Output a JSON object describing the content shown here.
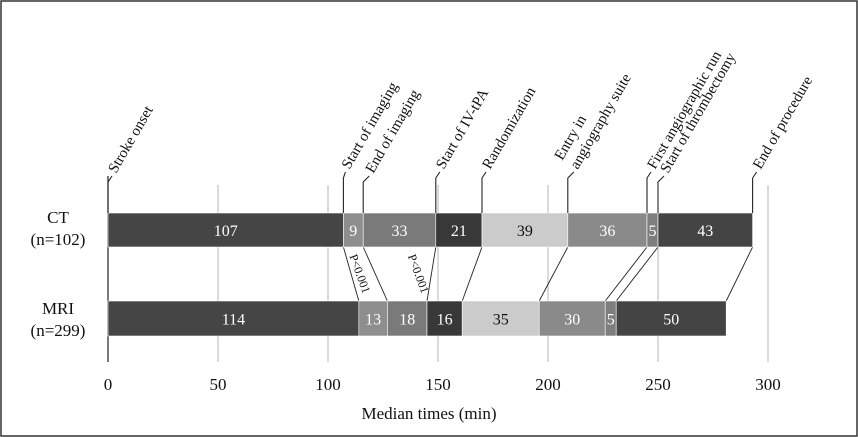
{
  "chart_data": {
    "type": "bar",
    "orientation": "horizontal",
    "stacked": true,
    "xlabel": "Median times (min)",
    "xlim": [
      0,
      300
    ],
    "xticks": [
      "0",
      "50",
      "100",
      "150",
      "200",
      "250",
      "300"
    ],
    "grid": true,
    "milestones": [
      "Stroke onset",
      "Start of imaging",
      "End of imaging",
      "Start of IV-tPA",
      "Randomization",
      "Entry in angiography suite",
      "First angiographic run",
      "Start of thrombectomy",
      "End of procedure"
    ],
    "rows": [
      {
        "label_line1": "CT",
        "label_line2": "(n=102)",
        "segments": [
          107,
          9,
          33,
          21,
          39,
          36,
          5,
          43
        ],
        "segment_labels": [
          "107",
          "9",
          "33",
          "21",
          "39",
          "36",
          "5",
          "43"
        ]
      },
      {
        "label_line1": "MRI",
        "label_line2": "(n=299)",
        "segments": [
          114,
          13,
          18,
          16,
          35,
          30,
          5,
          50
        ],
        "segment_labels": [
          "114",
          "13",
          "18",
          "16",
          "35",
          "30",
          "5",
          "50"
        ]
      }
    ],
    "annotations": [
      "P<0.001",
      "P<0.001"
    ],
    "colors": [
      "#454545",
      "#8e8e8e",
      "#7a7a7a",
      "#383838",
      "#cbcbcb",
      "#8a8a8a",
      "#7e7e7e",
      "#444444"
    ]
  }
}
